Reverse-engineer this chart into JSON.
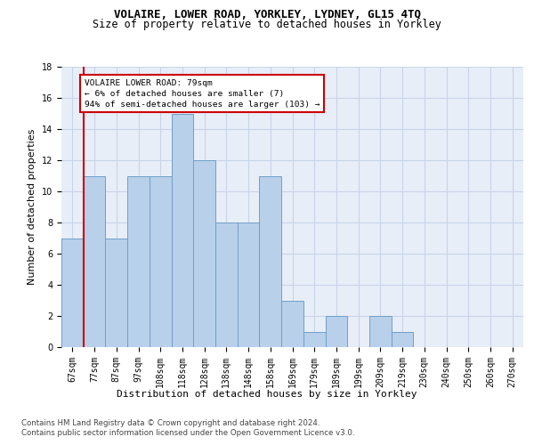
{
  "title1": "VOLAIRE, LOWER ROAD, YORKLEY, LYDNEY, GL15 4TQ",
  "title2": "Size of property relative to detached houses in Yorkley",
  "xlabel": "Distribution of detached houses by size in Yorkley",
  "ylabel": "Number of detached properties",
  "footer1": "Contains HM Land Registry data © Crown copyright and database right 2024.",
  "footer2": "Contains public sector information licensed under the Open Government Licence v3.0.",
  "bar_labels": [
    "67sqm",
    "77sqm",
    "87sqm",
    "97sqm",
    "108sqm",
    "118sqm",
    "128sqm",
    "138sqm",
    "148sqm",
    "158sqm",
    "169sqm",
    "179sqm",
    "189sqm",
    "199sqm",
    "209sqm",
    "219sqm",
    "230sqm",
    "240sqm",
    "250sqm",
    "260sqm",
    "270sqm"
  ],
  "bar_values": [
    7,
    11,
    7,
    11,
    11,
    15,
    12,
    8,
    8,
    11,
    3,
    1,
    2,
    0,
    2,
    1,
    0,
    0,
    0,
    0,
    0
  ],
  "bar_color": "#b8d0ea",
  "bar_edge_color": "#6fa0c8",
  "annotation_line1": "VOLAIRE LOWER ROAD: 79sqm",
  "annotation_line2": "← 6% of detached houses are smaller (7)",
  "annotation_line3": "94% of semi-detached houses are larger (103) →",
  "annotation_box_facecolor": "#ffffff",
  "annotation_box_edgecolor": "#cc0000",
  "vline_color": "#cc0000",
  "ylim": [
    0,
    18
  ],
  "yticks": [
    0,
    2,
    4,
    6,
    8,
    10,
    12,
    14,
    16,
    18
  ],
  "grid_color": "#c8d4e8",
  "bg_color": "#e8eef8",
  "title1_fontsize": 9,
  "title2_fontsize": 8.5,
  "xlabel_fontsize": 8,
  "ylabel_fontsize": 8,
  "tick_fontsize": 7,
  "footer_fontsize": 6.2
}
